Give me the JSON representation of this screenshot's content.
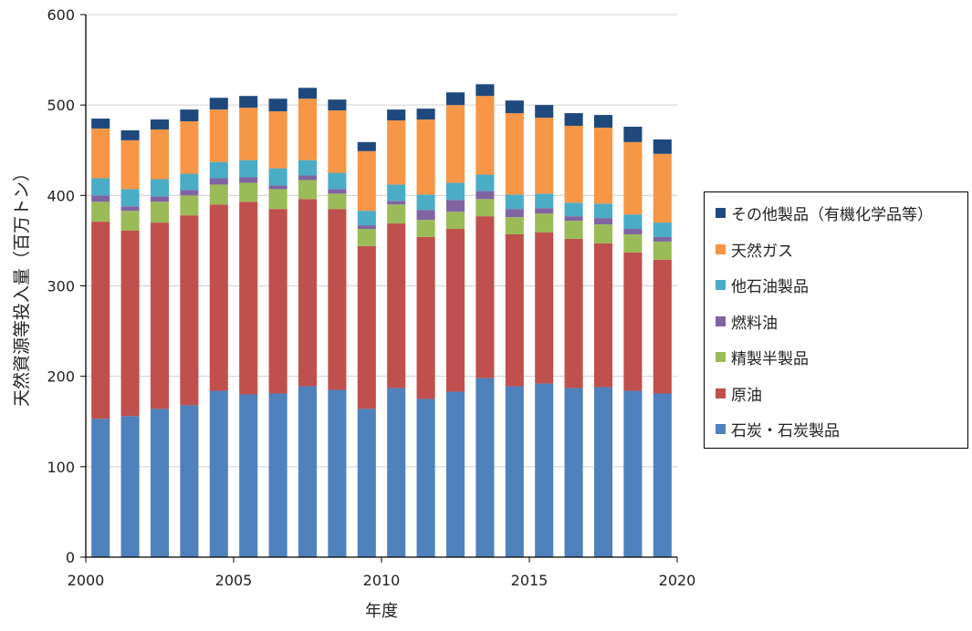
{
  "chart_data": {
    "type": "bar",
    "stacked": true,
    "x": [
      2000,
      2001,
      2002,
      2003,
      2004,
      2005,
      2006,
      2007,
      2008,
      2009,
      2010,
      2011,
      2012,
      2013,
      2014,
      2015,
      2016,
      2017,
      2018,
      2019
    ],
    "xlabel": "年度",
    "ylabel": "天然資源等投入量（百万トン）",
    "xlim": [
      2000,
      2020
    ],
    "ylim": [
      0,
      600
    ],
    "x_ticks": [
      2000,
      2005,
      2010,
      2015,
      2020
    ],
    "y_ticks": [
      0,
      100,
      200,
      300,
      400,
      500,
      600
    ],
    "grid": "horizontal",
    "legend_position": "right",
    "series": [
      {
        "name": "石炭・石炭製品",
        "color": "#4f81bd",
        "values": [
          153,
          156,
          164,
          168,
          184,
          180,
          181,
          189,
          185,
          164,
          187,
          175,
          183,
          198,
          189,
          192,
          187,
          188,
          184,
          181
        ]
      },
      {
        "name": "原油",
        "color": "#c0504d",
        "values": [
          218,
          205,
          206,
          210,
          206,
          213,
          204,
          207,
          200,
          180,
          182,
          179,
          180,
          179,
          168,
          167,
          165,
          159,
          153,
          148
        ]
      },
      {
        "name": "精製半製品",
        "color": "#9bbb59",
        "values": [
          22,
          22,
          23,
          22,
          22,
          21,
          22,
          21,
          17,
          19,
          21,
          19,
          19,
          19,
          19,
          21,
          20,
          21,
          20,
          20
        ]
      },
      {
        "name": "燃料油",
        "color": "#8064a2",
        "values": [
          7,
          5,
          6,
          6,
          7,
          6,
          4,
          5,
          5,
          4,
          4,
          11,
          13,
          9,
          9,
          6,
          5,
          7,
          6,
          5
        ]
      },
      {
        "name": "他石油製品",
        "color": "#4bacc6",
        "values": [
          19,
          19,
          19,
          18,
          18,
          19,
          19,
          17,
          18,
          16,
          18,
          17,
          19,
          18,
          16,
          16,
          15,
          16,
          16,
          16
        ]
      },
      {
        "name": "天然ガス",
        "color": "#f79646",
        "values": [
          55,
          54,
          55,
          58,
          58,
          58,
          63,
          68,
          69,
          66,
          71,
          83,
          86,
          87,
          90,
          84,
          85,
          84,
          80,
          76
        ]
      },
      {
        "name": "その他製品（有機化学品等）",
        "color": "#1f497d",
        "values": [
          11,
          11,
          11,
          13,
          13,
          13,
          14,
          12,
          12,
          10,
          12,
          12,
          14,
          13,
          14,
          14,
          14,
          14,
          17,
          16
        ]
      }
    ]
  }
}
